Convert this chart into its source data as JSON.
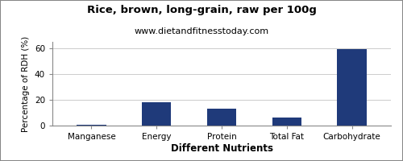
{
  "title": "Rice, brown, long-grain, raw per 100g",
  "subtitle": "www.dietandfitnesstoday.com",
  "xlabel": "Different Nutrients",
  "ylabel": "Percentage of RDH (%)",
  "categories": [
    "Manganese",
    "Energy",
    "Protein",
    "Total Fat",
    "Carbohydrate"
  ],
  "values": [
    0.5,
    18,
    13,
    6,
    59.5
  ],
  "bar_color": "#1f3a7a",
  "ylim": [
    0,
    65
  ],
  "yticks": [
    0,
    20,
    40,
    60
  ],
  "background_color": "#ffffff",
  "grid_color": "#cccccc",
  "title_fontsize": 9.5,
  "subtitle_fontsize": 8,
  "xlabel_fontsize": 8.5,
  "ylabel_fontsize": 7.5,
  "tick_fontsize": 7.5,
  "bar_width": 0.45
}
